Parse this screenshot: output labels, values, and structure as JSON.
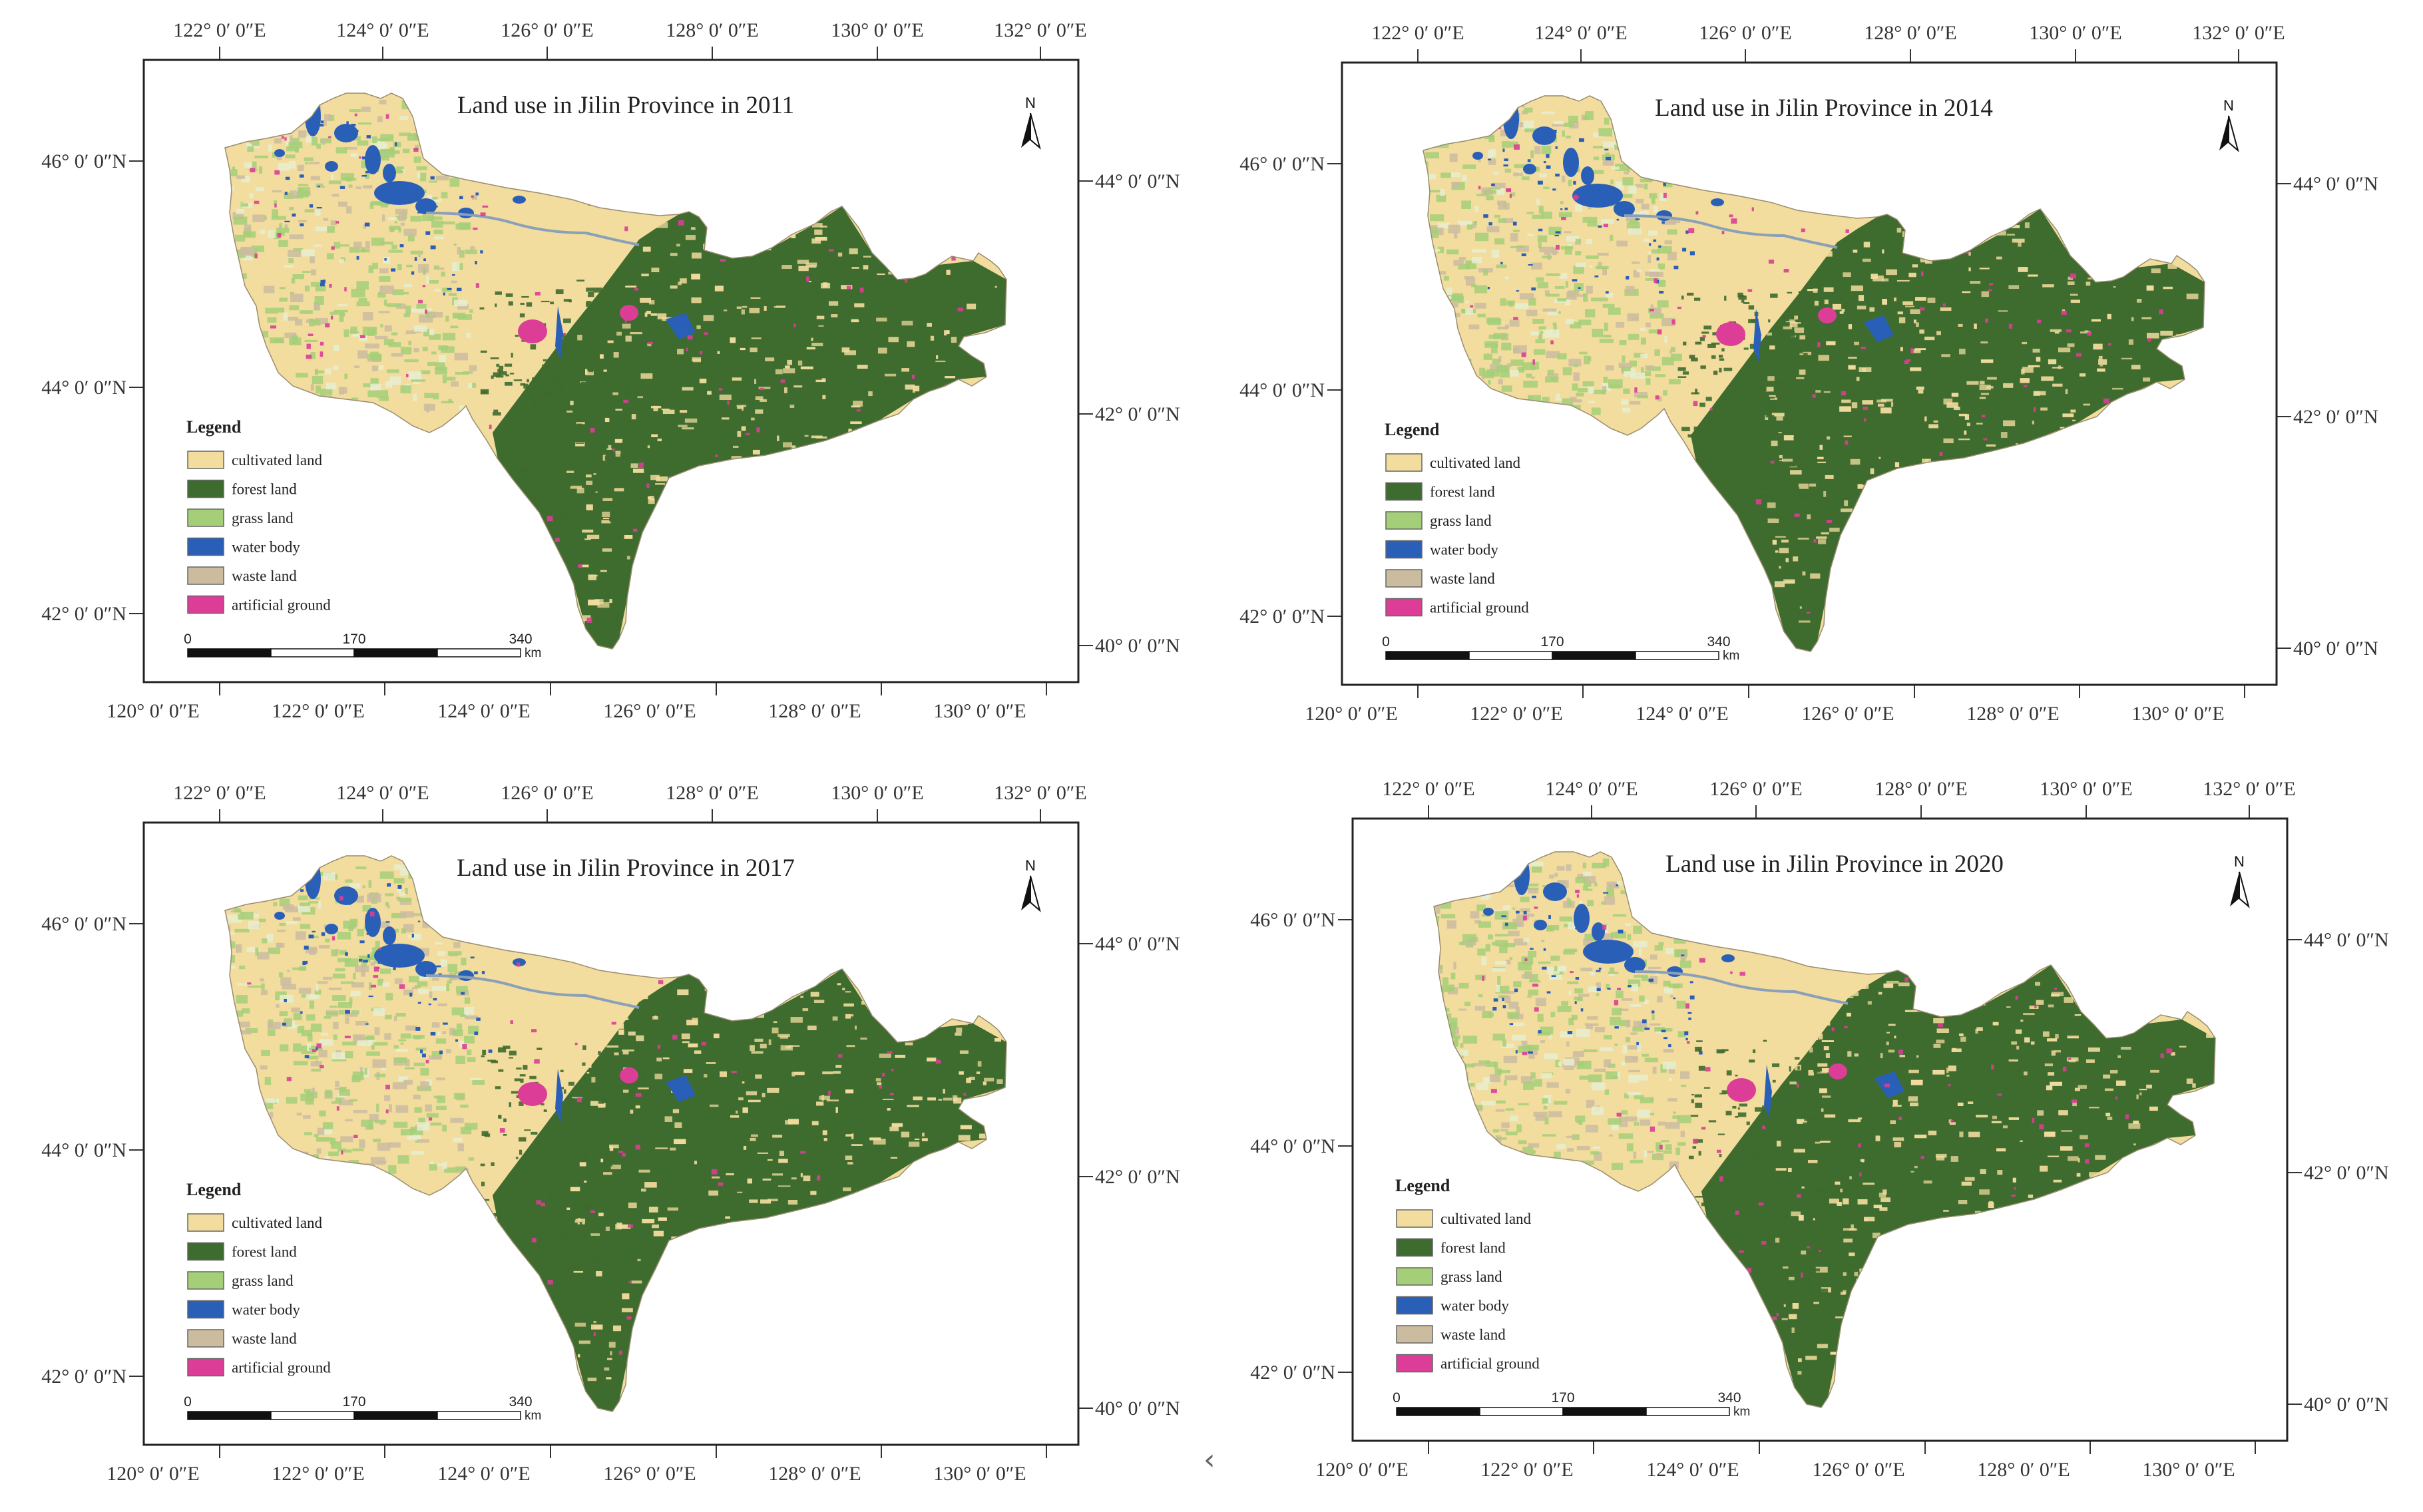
{
  "colors": {
    "cultivated": "#f2dc9e",
    "forest": "#3e6b2e",
    "grass": "#a4cf78",
    "water": "#2a5fb8",
    "waste": "#cbbca0",
    "artificial": "#dc3d96"
  },
  "legend": {
    "title": "Legend",
    "items": [
      {
        "key": "cultivated",
        "label": "cultivated land"
      },
      {
        "key": "forest",
        "label": "forest land"
      },
      {
        "key": "grass",
        "label": "grass land"
      },
      {
        "key": "water",
        "label": "water body"
      },
      {
        "key": "waste",
        "label": "waste land"
      },
      {
        "key": "artificial",
        "label": "artificial ground"
      }
    ]
  },
  "scale_bar": {
    "ticks": [
      "0",
      "170",
      "340"
    ],
    "unit": "km"
  },
  "north_label": "N",
  "axes": {
    "top_lon_labels": [
      "122° 0′ 0″E",
      "124° 0′ 0″E",
      "126° 0′ 0″E",
      "128° 0′ 0″E",
      "130° 0′ 0″E",
      "132° 0′ 0″E"
    ],
    "bottom_lon_labels": [
      "120° 0′ 0″E",
      "122° 0′ 0″E",
      "124° 0′ 0″E",
      "126° 0′ 0″E",
      "128° 0′ 0″E",
      "130° 0′ 0″E"
    ],
    "left_lat_labels": [
      "46° 0′ 0″N",
      "44° 0′ 0″N",
      "42° 0′ 0″N"
    ],
    "right_lat_labels": [
      "44° 0′ 0″N",
      "42° 0′ 0″N",
      "40° 0′ 0″N"
    ]
  },
  "maps": [
    {
      "title": "Land use in Jilin Province in 2011"
    },
    {
      "title": "Land use in Jilin Province in 2014"
    },
    {
      "title": "Land use in Jilin Province in 2017"
    },
    {
      "title": "Land use in Jilin Province in 2020"
    }
  ],
  "nav": {
    "back_glyph": "‹"
  }
}
